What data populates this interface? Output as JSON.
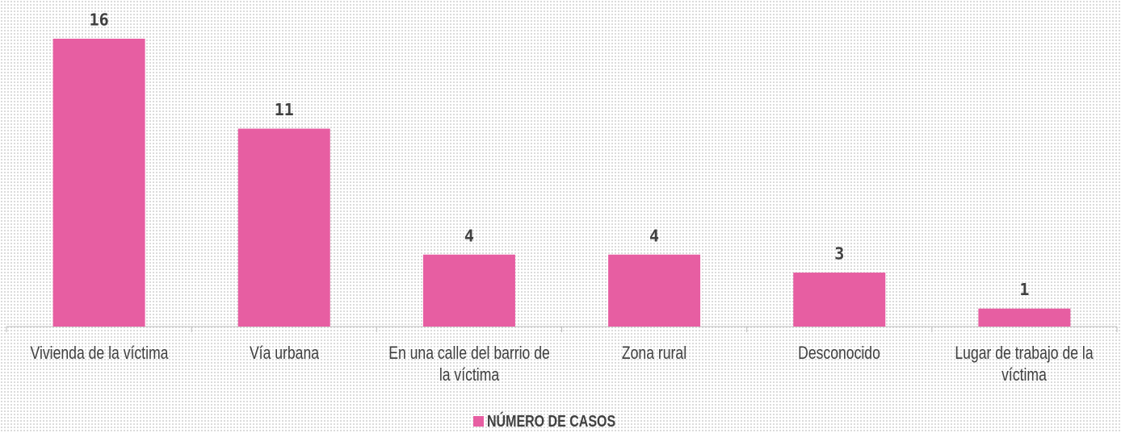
{
  "chart_data": {
    "type": "bar",
    "categories": [
      "Vivienda de la víctima",
      "Vía urbana",
      "En una calle del barrio de la víctima",
      "Zona rural",
      "Desconocido",
      "Lugar de trabajo de la víctima"
    ],
    "series": [
      {
        "name": "NÚMERO DE CASOS",
        "color": "#e75ea2",
        "values": [
          16,
          11,
          4,
          4,
          3,
          1
        ]
      }
    ],
    "legend": "bottom"
  }
}
